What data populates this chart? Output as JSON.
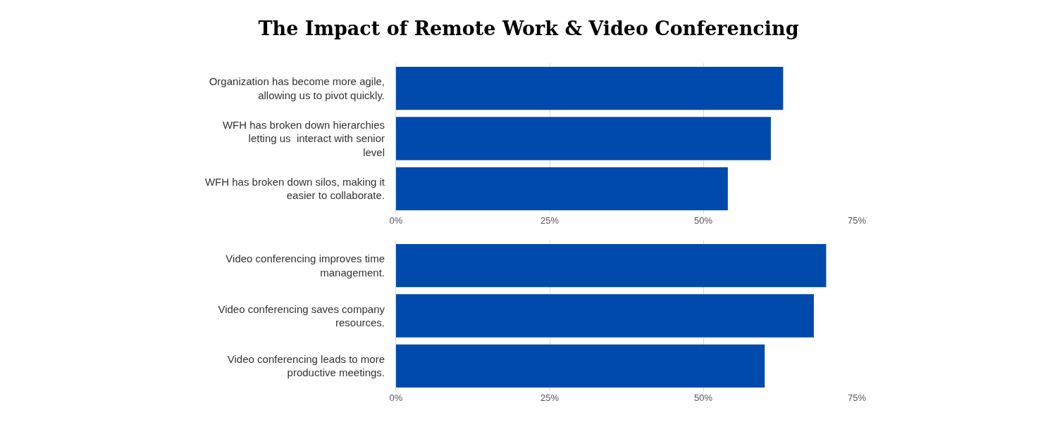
{
  "chart_data": [
    {
      "type": "bar",
      "title": "The Impact of Remote Work & Video Conferencing",
      "orientation": "horizontal",
      "categories": [
        "Organization has become more agile, allowing us to pivot quickly.",
        "WFH has broken down hierarchies letting us  interact with senior level",
        "WFH has broken down silos, making it easier to collaborate."
      ],
      "values": [
        63,
        61,
        54
      ],
      "color": "#004aad",
      "xlim": [
        0,
        75
      ],
      "xticks": [
        {
          "value": 0,
          "label": "0%"
        },
        {
          "value": 25,
          "label": "25%"
        },
        {
          "value": 50,
          "label": "50%"
        },
        {
          "value": 75,
          "label": "75%"
        }
      ],
      "grid": "x"
    },
    {
      "type": "bar",
      "orientation": "horizontal",
      "categories": [
        "Video conferencing improves time management.",
        "Video conferencing saves company resources.",
        "Video conferencing leads to more productive meetings."
      ],
      "values": [
        70,
        68,
        60
      ],
      "color": "#004aad",
      "xlim": [
        0,
        75
      ],
      "xticks": [
        {
          "value": 0,
          "label": "0%"
        },
        {
          "value": 25,
          "label": "25%"
        },
        {
          "value": 50,
          "label": "50%"
        },
        {
          "value": 75,
          "label": "75%"
        }
      ],
      "grid": "x"
    }
  ]
}
